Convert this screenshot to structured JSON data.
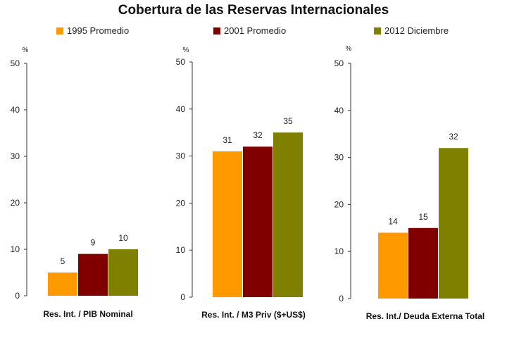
{
  "chart_data": {
    "type": "bar",
    "title": "Cobertura de las Reservas Internacionales",
    "series": [
      {
        "name": "1995 Promedio",
        "color": "#FF9900"
      },
      {
        "name": "2001 Promedio",
        "color": "#800000"
      },
      {
        "name": "2012 Diciembre",
        "color": "#808000"
      }
    ],
    "panels": [
      {
        "xlabel": "Res. Int. / PIB Nominal",
        "ylabel": "%",
        "ylim": [
          0,
          50
        ],
        "yticks": [
          0,
          10,
          20,
          30,
          40,
          50
        ],
        "values": [
          5,
          9,
          10
        ]
      },
      {
        "xlabel": "Res. Int. / M3 Priv ($+US$)",
        "ylabel": "%",
        "ylim": [
          0,
          50
        ],
        "yticks": [
          0,
          10,
          20,
          30,
          40,
          50
        ],
        "values": [
          31,
          32,
          35
        ]
      },
      {
        "xlabel": "Res. Int./ Deuda Externa Total",
        "ylabel": "%",
        "ylim": [
          0,
          50
        ],
        "yticks": [
          0,
          10,
          20,
          30,
          40,
          50
        ],
        "values": [
          14,
          15,
          32
        ]
      }
    ],
    "grid": false,
    "legend_position": "top"
  }
}
